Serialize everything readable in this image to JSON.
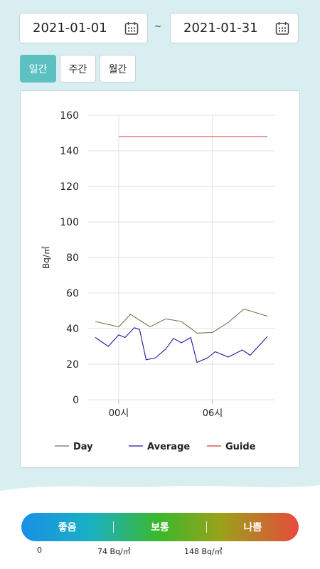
{
  "date_range": {
    "start": "2021-01-01",
    "separator": "~",
    "end": "2021-01-31"
  },
  "tabs": [
    {
      "label": "일간",
      "active": true
    },
    {
      "label": "주간",
      "active": false
    },
    {
      "label": "월간",
      "active": false
    }
  ],
  "legend": {
    "scale_labels": [
      "좋음",
      "보통",
      "나쁨"
    ],
    "thresholds": [
      "0",
      "74 Bq/㎥",
      "148 Bq/㎥"
    ]
  },
  "colors": {
    "accent": "#5cc1c0",
    "day": "#6b7a50",
    "average": "#1a1aa0",
    "guide": "#c8383c"
  },
  "chart_data": {
    "type": "line",
    "ylabel": "Bq/㎥",
    "ylim": [
      0,
      160
    ],
    "yticks": [
      "0",
      "20",
      "40",
      "60",
      "80",
      "100",
      "120",
      "140",
      "160"
    ],
    "xticks": [
      "00시",
      "06시"
    ],
    "legend_position": "bottom",
    "grid": true,
    "series": [
      {
        "name": "Day",
        "x": [
          -1.5,
          0,
          0.75,
          2,
          3,
          4,
          5,
          6,
          7,
          8,
          9.5
        ],
        "values": [
          44,
          41,
          48,
          41,
          45.5,
          44,
          37.5,
          37.8,
          43.5,
          51,
          47
        ]
      },
      {
        "name": "Average",
        "x": [
          -1.5,
          -0.67,
          0,
          0.4,
          1,
          1.33,
          1.75,
          2.33,
          3,
          3.5,
          4,
          4.6,
          5,
          5.67,
          6.17,
          7,
          7.9,
          8.4,
          9.5
        ],
        "values": [
          35,
          30,
          36.5,
          35,
          40.5,
          39.5,
          22.5,
          23.5,
          28.5,
          34.5,
          32,
          35,
          21,
          23.5,
          27,
          24,
          28,
          25,
          35.5
        ]
      },
      {
        "name": "Guide",
        "x": [
          0,
          9.5
        ],
        "values": [
          148,
          148
        ]
      }
    ]
  }
}
